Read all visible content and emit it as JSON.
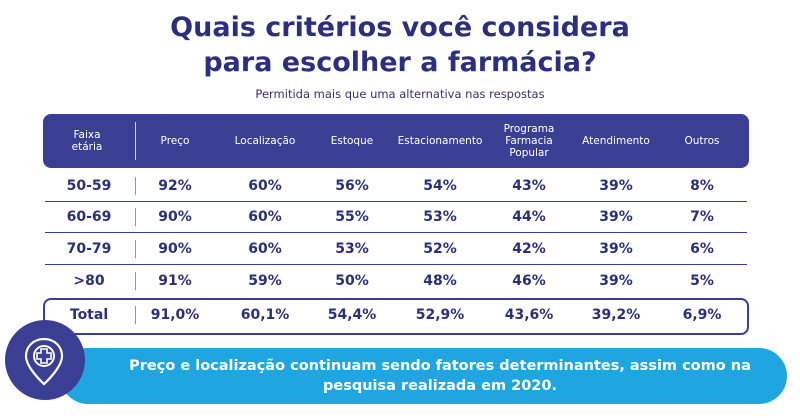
{
  "title_line1": "Quais critérios você considera",
  "title_line2": "para escolher a farmácia?",
  "subtitle": "Permitida mais que uma alternativa nas respostas",
  "chart_data": {
    "type": "table",
    "corner_header": [
      "Faixa",
      "etária"
    ],
    "columns": [
      [
        "Preço"
      ],
      [
        "Localização"
      ],
      [
        "Estoque"
      ],
      [
        "Estacionamento"
      ],
      [
        "Programa",
        "Farmacia",
        "Popular"
      ],
      [
        "Atendimento"
      ],
      [
        "Outros"
      ]
    ],
    "rows": [
      {
        "label": "50-59",
        "values": [
          "92%",
          "60%",
          "56%",
          "54%",
          "43%",
          "39%",
          "8%"
        ]
      },
      {
        "label": "60-69",
        "values": [
          "90%",
          "60%",
          "55%",
          "53%",
          "44%",
          "39%",
          "7%"
        ]
      },
      {
        "label": "70-79",
        "values": [
          "90%",
          "60%",
          "53%",
          "52%",
          "42%",
          "39%",
          "6%"
        ]
      },
      {
        "label": ">80",
        "values": [
          "91%",
          "59%",
          "50%",
          "48%",
          "46%",
          "39%",
          "5%"
        ]
      },
      {
        "label": "Total",
        "values": [
          "91,0%",
          "60,1%",
          "54,4%",
          "52,9%",
          "43,6%",
          "39,2%",
          "6,9%"
        ]
      }
    ]
  },
  "banner_line1": "Preço e localização continuam sendo fatores determinantes, assim como na",
  "banner_line2": "pesquisa realizada em 2020.",
  "colors": {
    "navy": "#3a3f93",
    "banner": "#1fa6e0"
  },
  "icons": {
    "banner_icon": "pharmacy-location-pin-icon"
  }
}
